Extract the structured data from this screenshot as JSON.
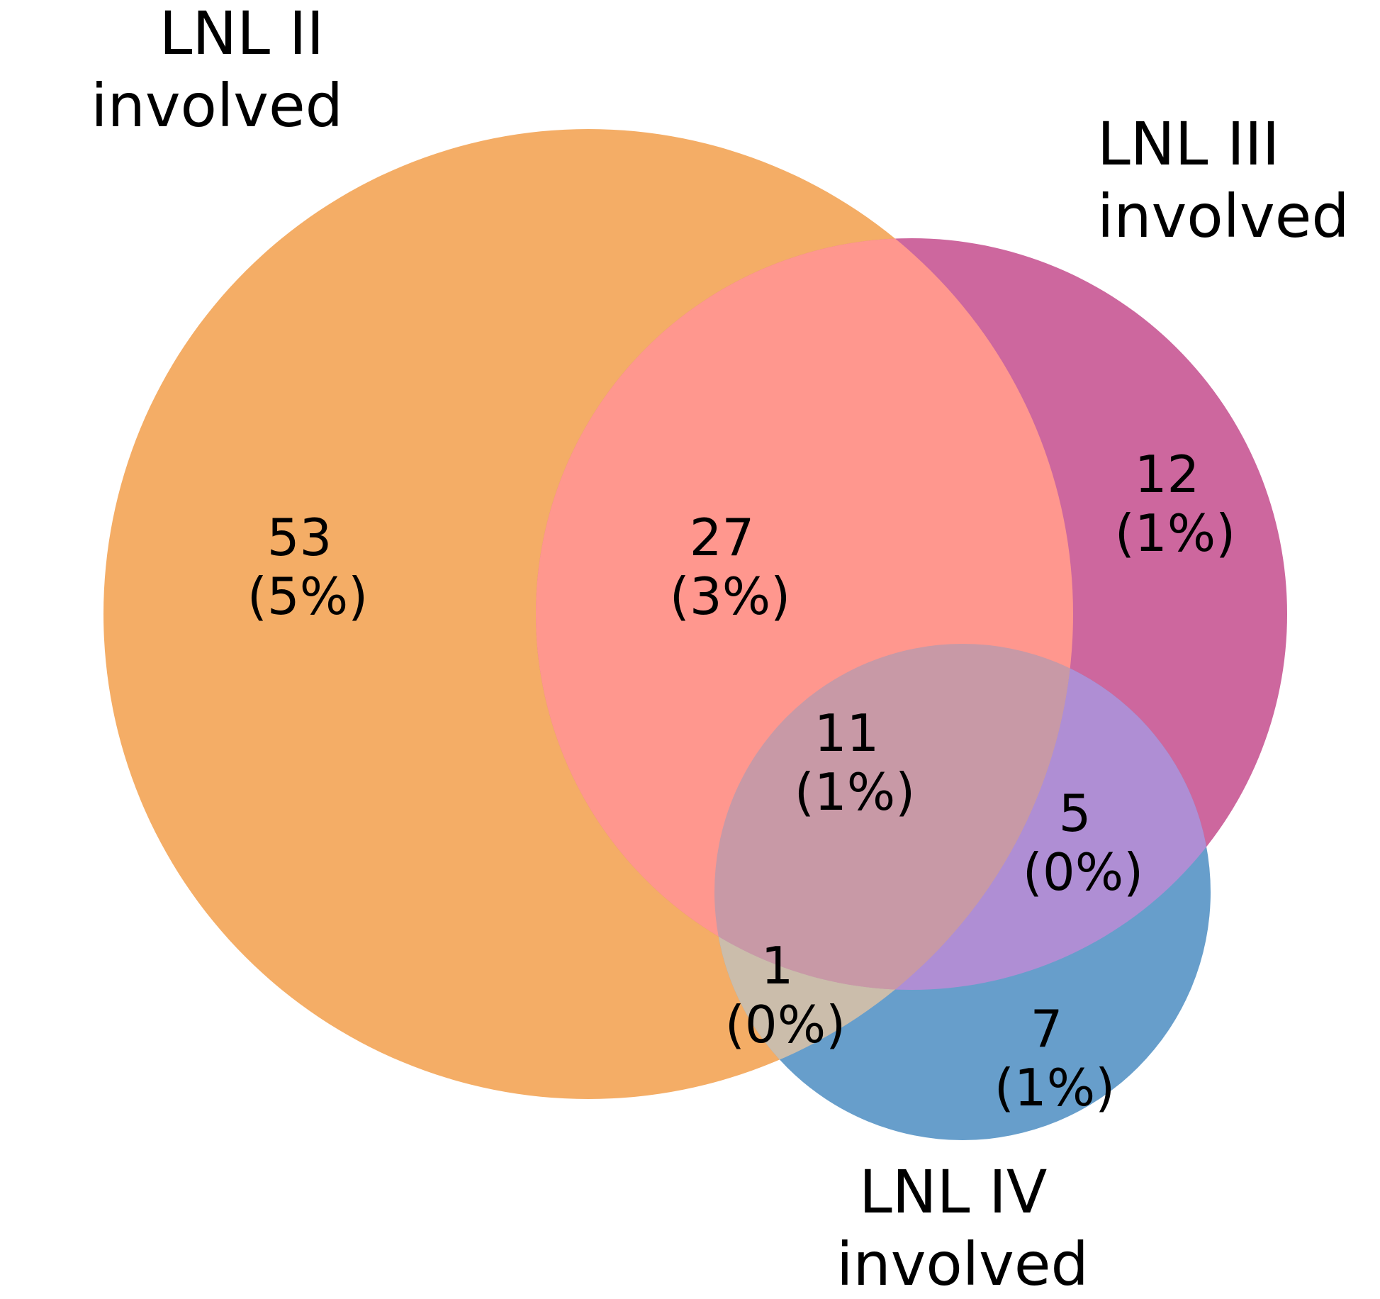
{
  "sets": [
    {
      "id": "II",
      "label_lines": [
        "LNL II",
        "involved"
      ],
      "color": "#f4ad66"
    },
    {
      "id": "III",
      "label_lines": [
        "LNL III",
        "involved"
      ],
      "color": "#cd679e"
    },
    {
      "id": "IV",
      "label_lines": [
        "LNL IV",
        "involved"
      ],
      "color": "#679ecb"
    }
  ],
  "overlap_colors": {
    "II_III": "#ff978e",
    "II_IV": "#cbbdab",
    "III_IV": "#af8ed4",
    "II_III_IV": "#c899a6"
  },
  "regions": [
    {
      "key": "II_only",
      "count": "53",
      "percent": "(5%)"
    },
    {
      "key": "III_only",
      "count": "12",
      "percent": "(1%)"
    },
    {
      "key": "IV_only",
      "count": "7",
      "percent": "(1%)"
    },
    {
      "key": "II_III",
      "count": "27",
      "percent": "(3%)"
    },
    {
      "key": "II_IV",
      "count": "1",
      "percent": "(0%)"
    },
    {
      "key": "III_IV",
      "count": "5",
      "percent": "(0%)"
    },
    {
      "key": "II_III_IV",
      "count": "11",
      "percent": "(1%)"
    }
  ]
}
